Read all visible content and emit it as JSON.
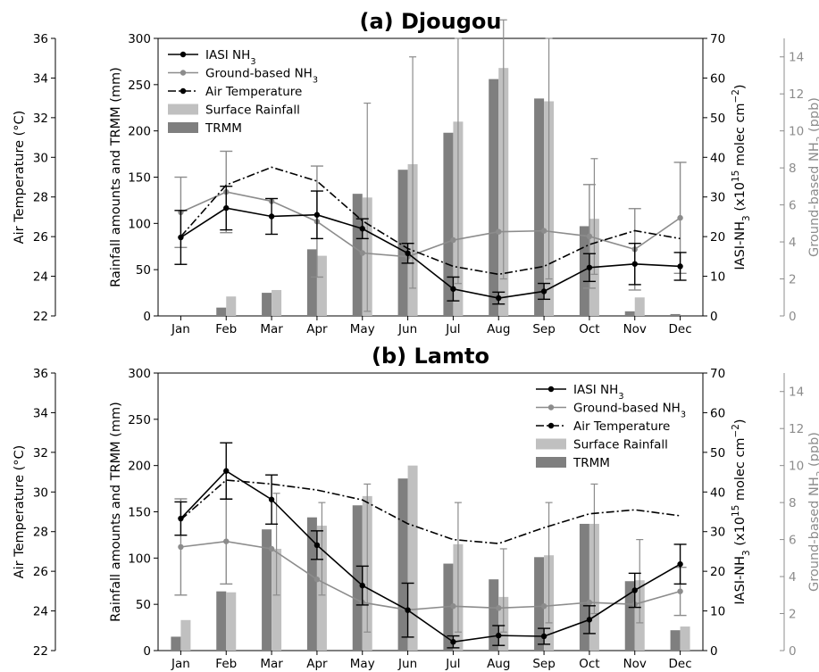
{
  "chart_data": [
    {
      "type": "bar",
      "title": "(a) Djougou",
      "categories": [
        "Jan",
        "Feb",
        "Mar",
        "Apr",
        "May",
        "Jun",
        "Jul",
        "Aug",
        "Sep",
        "Oct",
        "Nov",
        "Dec"
      ],
      "axes": {
        "left_outer": {
          "label": "Air Temperature (°C)",
          "range": [
            22,
            36
          ],
          "ticks": [
            "22",
            "24",
            "26",
            "28",
            "30",
            "32",
            "34",
            "36"
          ]
        },
        "left_inner": {
          "label": "Rainfall amounts and TRMM (mm)",
          "range": [
            0,
            300
          ],
          "ticks": [
            "0",
            "50",
            "100",
            "150",
            "200",
            "250",
            "300"
          ]
        },
        "right_inner": {
          "label": "IASI-NH₃ (x10¹⁵ molec cm⁻²)",
          "range": [
            0,
            70
          ],
          "ticks": [
            "0",
            "10",
            "20",
            "30",
            "40",
            "50",
            "60",
            "70"
          ]
        },
        "right_outer": {
          "label": "Ground-based NH₃ (ppb)",
          "range": [
            0,
            15
          ],
          "ticks": [
            "0",
            "2",
            "4",
            "6",
            "8",
            "10",
            "12",
            "14"
          ]
        }
      },
      "legend": {
        "position": "top-left",
        "entries": [
          "IASI NH₃",
          "Ground-based NH₃",
          "Air Temperature",
          "Surface Rainfall",
          "TRMM"
        ]
      },
      "series": [
        {
          "name": "TRMM",
          "kind": "bar",
          "color": "#7f7f7f",
          "axis": "left_inner",
          "values": [
            0,
            9,
            25,
            72,
            132,
            158,
            198,
            256,
            235,
            97,
            5,
            2
          ]
        },
        {
          "name": "Surface Rainfall",
          "kind": "bar",
          "color": "#c0c0c0",
          "axis": "left_inner",
          "values": [
            0,
            21,
            28,
            65,
            128,
            164,
            210,
            268,
            232,
            105,
            20,
            0
          ],
          "err_low": [
            0,
            0,
            0,
            0,
            5,
            30,
            35,
            40,
            40,
            45,
            0,
            0
          ],
          "err_high": [
            0,
            0,
            0,
            0,
            230,
            280,
            300,
            320,
            300,
            170,
            0,
            0
          ]
        },
        {
          "name": "IASI NH₃",
          "kind": "line",
          "color": "#000000",
          "axis": "right_inner",
          "values": [
            19.8,
            27.2,
            25.1,
            25.5,
            22.0,
            15.8,
            6.8,
            4.5,
            6.2,
            12.2,
            13.1,
            12.5
          ],
          "err": [
            6.8,
            5.5,
            4.5,
            6.0,
            2.5,
            2.5,
            3.0,
            1.5,
            2.0,
            3.5,
            5.2,
            3.5
          ]
        },
        {
          "name": "Ground-based NH₃",
          "kind": "line",
          "color": "#8c8c8c",
          "axis": "right_outer",
          "values": [
            5.6,
            6.7,
            6.2,
            5.1,
            3.4,
            3.2,
            4.1,
            4.55,
            4.6,
            4.3,
            3.6,
            5.3
          ],
          "err": [
            1.9,
            2.2,
            0,
            3.0,
            0,
            0,
            0,
            0,
            0,
            2.8,
            2.2,
            3.0
          ]
        },
        {
          "name": "Air Temperature",
          "kind": "line",
          "style": "dashdot",
          "color": "#000000",
          "axis": "left_outer",
          "values": [
            26.0,
            28.6,
            29.5,
            28.8,
            26.8,
            25.4,
            24.5,
            24.1,
            24.5,
            25.6,
            26.3,
            25.9
          ]
        }
      ]
    },
    {
      "type": "bar",
      "title": "(b) Lamto",
      "categories": [
        "Jan",
        "Feb",
        "Mar",
        "Apr",
        "May",
        "Jun",
        "Jul",
        "Aug",
        "Sep",
        "Oct",
        "Nov",
        "Dec"
      ],
      "axes": {
        "left_outer": {
          "label": "Air Temperature (°C)",
          "range": [
            22,
            36
          ],
          "ticks": [
            "22",
            "24",
            "26",
            "28",
            "30",
            "32",
            "34",
            "36"
          ]
        },
        "left_inner": {
          "label": "Rainfall amounts and TRMM (mm)",
          "range": [
            0,
            300
          ],
          "ticks": [
            "0",
            "50",
            "100",
            "150",
            "200",
            "250",
            "300"
          ]
        },
        "right_inner": {
          "label": "IASI-NH₃ (x10¹⁵ molec cm⁻²)",
          "range": [
            0,
            70
          ],
          "ticks": [
            "0",
            "10",
            "20",
            "30",
            "40",
            "50",
            "60",
            "70"
          ]
        },
        "right_outer": {
          "label": "Ground-based NH₃ (ppb)",
          "range": [
            0,
            15
          ],
          "ticks": [
            "0",
            "2",
            "4",
            "6",
            "8",
            "10",
            "12",
            "14"
          ]
        }
      },
      "legend": {
        "position": "top-right",
        "entries": [
          "IASI NH₃",
          "Ground-based NH₃",
          "Air Temperature",
          "Surface Rainfall",
          "TRMM"
        ]
      },
      "series": [
        {
          "name": "TRMM",
          "kind": "bar",
          "color": "#7f7f7f",
          "axis": "left_inner",
          "values": [
            15,
            64,
            131,
            144,
            157,
            186,
            94,
            77,
            101,
            137,
            75,
            22
          ]
        },
        {
          "name": "Surface Rainfall",
          "kind": "bar",
          "color": "#c0c0c0",
          "axis": "left_inner",
          "values": [
            33,
            63,
            110,
            135,
            167,
            200,
            115,
            58,
            103,
            137,
            76,
            26
          ],
          "err_low": [
            0,
            0,
            60,
            60,
            20,
            0,
            20,
            20,
            30,
            40,
            30,
            0
          ],
          "err_high": [
            0,
            0,
            170,
            160,
            180,
            0,
            160,
            110,
            160,
            180,
            120,
            0
          ]
        },
        {
          "name": "IASI NH₃",
          "kind": "line",
          "color": "#000000",
          "axis": "right_inner",
          "values": [
            33.3,
            45.3,
            38.1,
            26.6,
            16.4,
            10.2,
            2.2,
            3.8,
            3.6,
            7.8,
            15.2,
            21.8
          ],
          "err": [
            4.2,
            7.1,
            6.2,
            3.6,
            4.9,
            6.8,
            1.5,
            2.5,
            2.0,
            3.5,
            4.3,
            5.0
          ]
        },
        {
          "name": "Ground-based NH₃",
          "kind": "line",
          "color": "#8c8c8c",
          "axis": "right_outer",
          "values": [
            5.6,
            5.9,
            5.5,
            3.85,
            2.6,
            2.2,
            2.4,
            2.3,
            2.4,
            2.6,
            2.5,
            3.2
          ],
          "err": [
            2.6,
            2.3,
            0,
            0,
            0,
            0,
            0,
            0,
            0,
            0,
            0,
            1.3
          ]
        },
        {
          "name": "Air Temperature",
          "kind": "line",
          "style": "dashdot",
          "color": "#000000",
          "axis": "left_outer",
          "values": [
            28.6,
            30.6,
            30.4,
            30.1,
            29.6,
            28.4,
            27.6,
            27.4,
            28.2,
            28.9,
            29.1,
            28.8
          ]
        }
      ]
    }
  ]
}
